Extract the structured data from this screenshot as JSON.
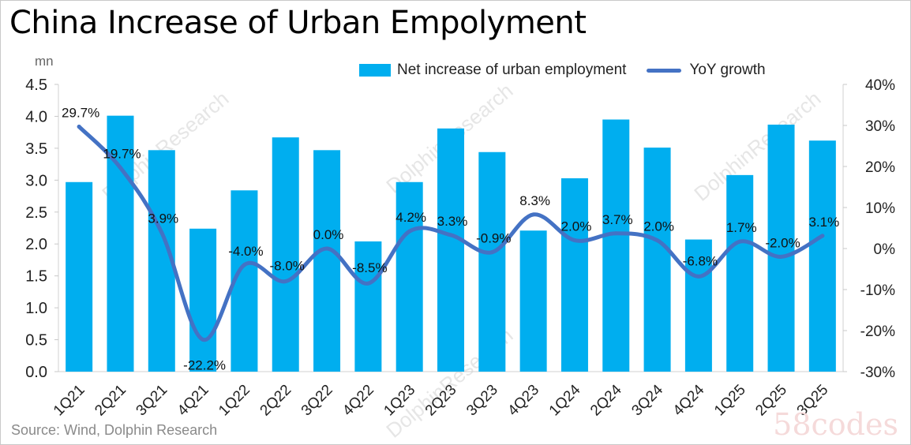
{
  "title": "China Increase of Urban Empolyment",
  "unit_label": "mn",
  "source": "Source: Wind,  Dolphin Research",
  "watermark": "DolphinResearch",
  "corner_stamp": "58codes",
  "legend": {
    "bar": "Net increase of urban employment",
    "line": "YoY growth"
  },
  "colors": {
    "bar": "#00aeef",
    "line": "#4472c4"
  },
  "chart_data": {
    "type": "bar",
    "categories": [
      "1Q21",
      "2Q21",
      "3Q21",
      "4Q21",
      "1Q22",
      "2Q22",
      "3Q22",
      "4Q22",
      "1Q23",
      "2Q23",
      "3Q23",
      "4Q23",
      "1Q24",
      "2Q24",
      "3Q24",
      "4Q24",
      "1Q25",
      "2Q25",
      "3Q25"
    ],
    "series": [
      {
        "name": "Net increase of urban employment",
        "type": "bar",
        "axis": "left",
        "values": [
          2.97,
          4.01,
          3.47,
          2.24,
          2.84,
          3.67,
          3.47,
          2.04,
          2.97,
          3.81,
          3.44,
          2.21,
          3.03,
          3.95,
          3.51,
          2.07,
          3.08,
          3.87,
          3.62
        ]
      },
      {
        "name": "YoY growth",
        "type": "line",
        "axis": "right",
        "values": [
          29.7,
          19.7,
          3.9,
          -22.2,
          -4.0,
          -8.0,
          0.0,
          -8.5,
          4.2,
          3.3,
          -0.9,
          8.3,
          2.0,
          3.7,
          2.0,
          -6.8,
          1.7,
          -2.0,
          3.1
        ],
        "labels": [
          "29.7%",
          "19.7%",
          "3.9%",
          "-22.2%",
          "-4.0%",
          "-8.0%",
          "0.0%",
          "-8.5%",
          "4.2%",
          "3.3%",
          "-0.9%",
          "8.3%",
          "2.0%",
          "3.7%",
          "2.0%",
          "-6.8%",
          "1.7%",
          "-2.0%",
          "3.1%"
        ]
      }
    ],
    "ylim_left": [
      0,
      4.5
    ],
    "yticks_left": [
      "0.0",
      "0.5",
      "1.0",
      "1.5",
      "2.0",
      "2.5",
      "3.0",
      "3.5",
      "4.0",
      "4.5"
    ],
    "ylim_right": [
      -30,
      40
    ],
    "yticks_right": [
      "-30%",
      "-20%",
      "-10%",
      "0%",
      "10%",
      "20%",
      "30%",
      "40%"
    ],
    "legend_position": "top-right",
    "grid": false
  }
}
